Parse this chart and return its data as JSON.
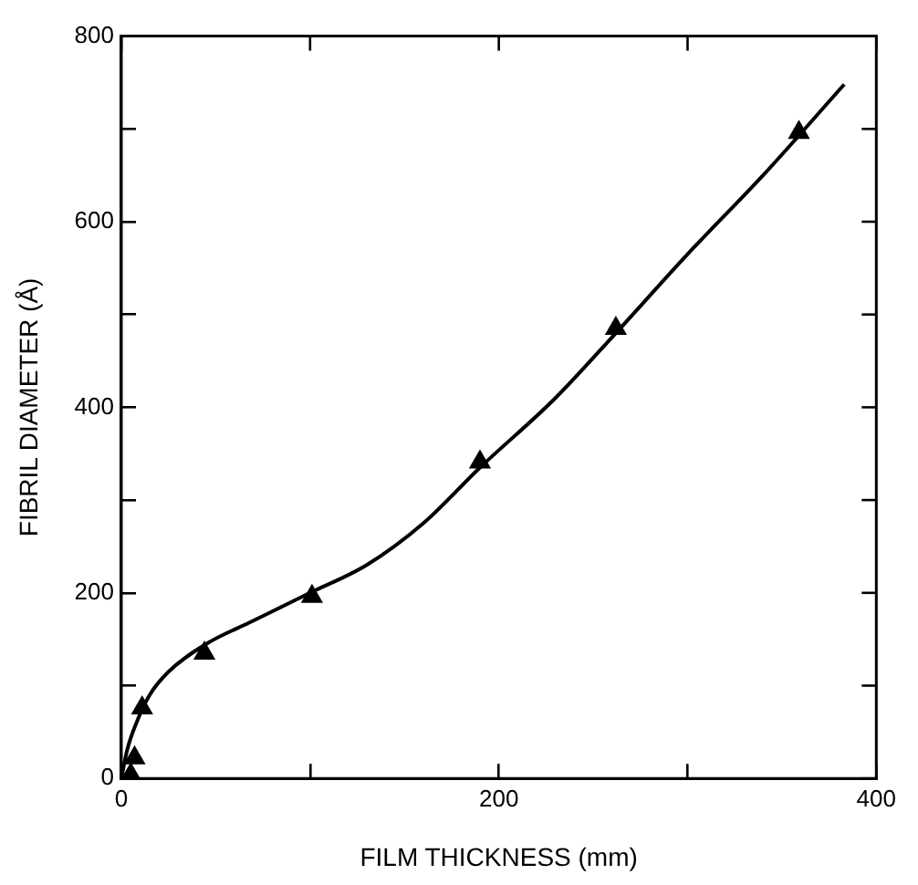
{
  "chart_data": {
    "type": "scatter",
    "xlabel": "FILM THICKNESS (mm)",
    "ylabel": "FIBRIL DIAMETER (Å)",
    "xlim": [
      0,
      400
    ],
    "ylim": [
      0,
      800
    ],
    "xticks": [
      0,
      {
        "value": 100,
        "label": null
      },
      200,
      {
        "value": 300,
        "label": null
      },
      400
    ],
    "yticks": [
      0,
      {
        "value": 100,
        "label": null
      },
      200,
      {
        "value": 300,
        "label": null
      },
      400,
      {
        "value": 500,
        "label": null
      },
      600,
      {
        "value": 700,
        "label": null
      },
      800
    ],
    "grid": false,
    "legend": false,
    "marker": "triangle",
    "series": [
      {
        "color": "#000000",
        "x": [
          5,
          7,
          11,
          44,
          101,
          190,
          262,
          359
        ],
        "values": [
          4,
          22,
          76,
          135,
          196,
          341,
          485,
          696
        ]
      },
      {
        "type": "line",
        "color": "#000000",
        "marker": "none",
        "line_style": "solid",
        "x": [
          0,
          3,
          8,
          15,
          25,
          45,
          70,
          100,
          130,
          160,
          190,
          230,
          262,
          300,
          340,
          383
        ],
        "values": [
          0,
          30,
          60,
          90,
          115,
          145,
          170,
          200,
          230,
          275,
          335,
          410,
          480,
          565,
          650,
          748
        ]
      }
    ]
  }
}
